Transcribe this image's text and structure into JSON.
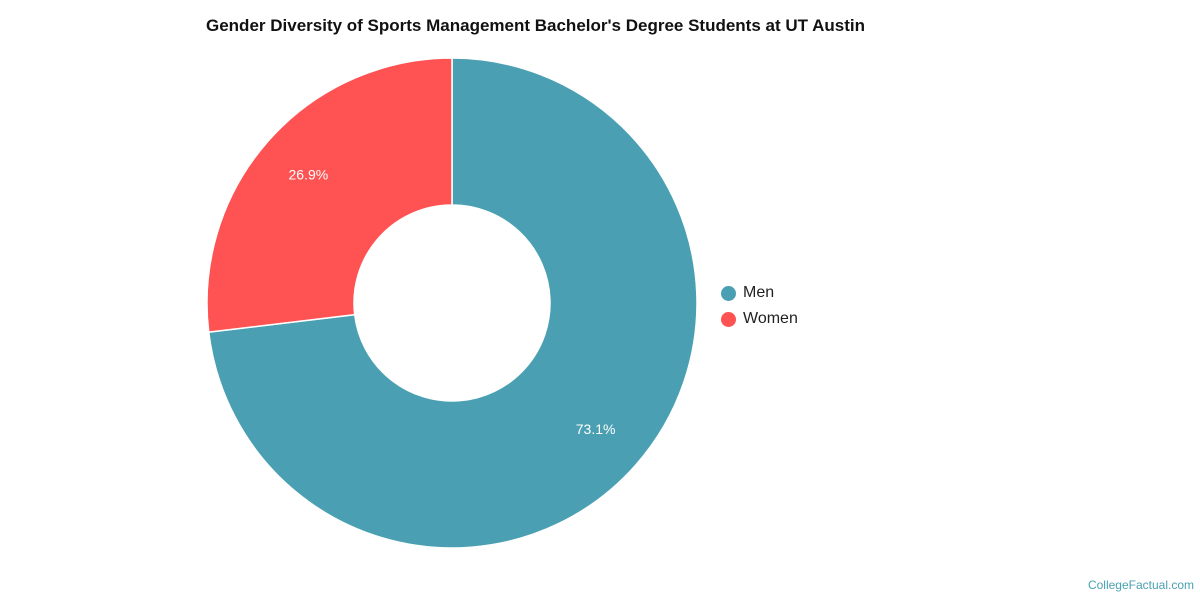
{
  "chart_data": {
    "type": "pie",
    "title": "Gender Diversity of Sports Management Bachelor's Degree Students at UT Austin",
    "categories": [
      "Men",
      "Women"
    ],
    "values": [
      73.1,
      26.9
    ],
    "value_labels": [
      "73.1%",
      "26.9%"
    ],
    "colors": [
      "#4aa0b2",
      "#ff5252"
    ],
    "donut": true,
    "legend_position": "right"
  },
  "credit": "CollegeFactual.com"
}
